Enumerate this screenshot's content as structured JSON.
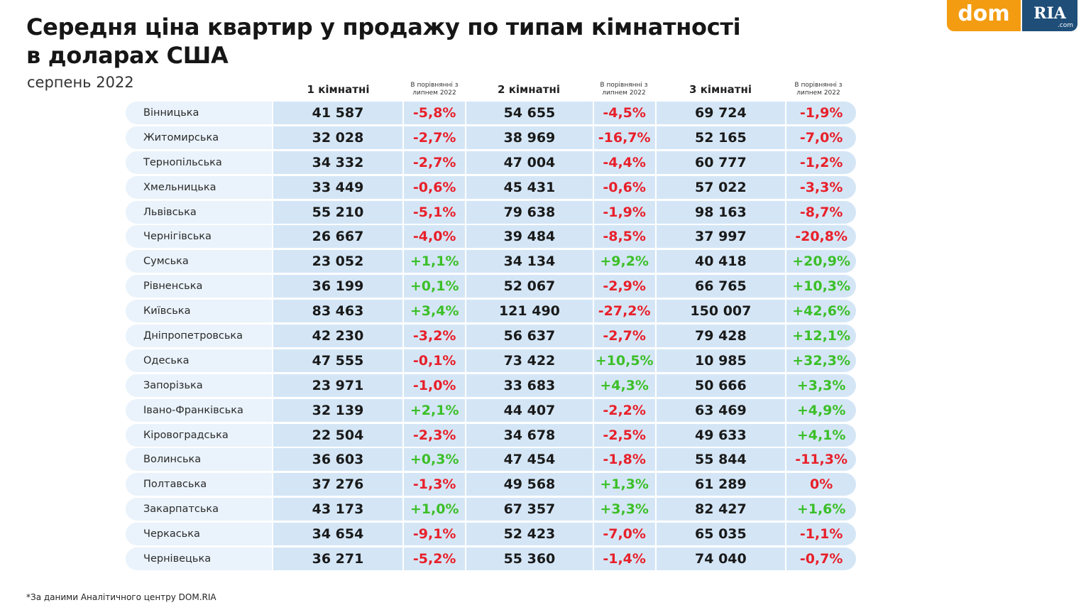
{
  "title_line1": "Середня ціна квартир у продажу по типам кімнатності",
  "title_line2": "в доларах США",
  "subtitle": "серпень 2022",
  "logo": {
    "dom": "dom",
    "ria": "RIA",
    "com": ".com"
  },
  "footnote": "*За даними Аналітичного центру DOM.RIA",
  "colors": {
    "negative": "#e8202a",
    "positive": "#3cbf28",
    "cell": "#d4e6f6",
    "region_cell": "#eaf3fb",
    "logo_orange": "#f39c12",
    "logo_blue": "#1f4e79"
  },
  "chart_data": {
    "type": "table",
    "columns": [
      "1 кімнатні",
      "В порівнянні з липнем 2022",
      "2 кімнатні",
      "В порівнянні з липнем 2022",
      "3 кімнатні",
      "В порівнянні з липнем 2022"
    ],
    "rows": [
      [
        "Вінницька",
        "41 587",
        "-5,8%",
        "54 655",
        "-4,5%",
        "69 724",
        "-1,9%"
      ],
      [
        "Житомирська",
        "32 028",
        "-2,7%",
        "38 969",
        "-16,7%",
        "52 165",
        "-7,0%"
      ],
      [
        "Тернопільська",
        "34 332",
        "-2,7%",
        "47 004",
        "-4,4%",
        "60 777",
        "-1,2%"
      ],
      [
        "Хмельницька",
        "33 449",
        "-0,6%",
        "45 431",
        "-0,6%",
        "57 022",
        "-3,3%"
      ],
      [
        "Львівська",
        "55 210",
        "-5,1%",
        "79 638",
        "-1,9%",
        "98 163",
        "-8,7%"
      ],
      [
        "Чернігівська",
        "26 667",
        "-4,0%",
        "39 484",
        "-8,5%",
        "37 997",
        "-20,8%"
      ],
      [
        "Сумська",
        "23 052",
        "+1,1%",
        "34 134",
        "+9,2%",
        "40 418",
        "+20,9%"
      ],
      [
        "Рівненська",
        "36 199",
        "+0,1%",
        "52 067",
        "-2,9%",
        "66 765",
        "+10,3%"
      ],
      [
        "Київська",
        "83 463",
        "+3,4%",
        "121 490",
        "-27,2%",
        "150 007",
        "+42,6%"
      ],
      [
        "Дніпропетровська",
        "42 230",
        "-3,2%",
        "56 637",
        "-2,7%",
        "79 428",
        "+12,1%"
      ],
      [
        "Одеська",
        "47 555",
        "-0,1%",
        "73 422",
        "+10,5%",
        "10 985",
        "+32,3%"
      ],
      [
        "Запорізька",
        "23 971",
        "-1,0%",
        "33 683",
        "+4,3%",
        "50 666",
        "+3,3%"
      ],
      [
        "Івано-Франківська",
        "32 139",
        "+2,1%",
        "44 407",
        "-2,2%",
        "63 469",
        "+4,9%"
      ],
      [
        "Кіровоградська",
        "22 504",
        "-2,3%",
        "34 678",
        "-2,5%",
        "49 633",
        "+4,1%"
      ],
      [
        "Волинська",
        "36 603",
        "+0,3%",
        "47 454",
        "-1,8%",
        "55 844",
        "-11,3%"
      ],
      [
        "Полтавська",
        "37 276",
        "-1,3%",
        "49 568",
        "+1,3%",
        "61 289",
        "0%"
      ],
      [
        "Закарпатська",
        "43 173",
        "+1,0%",
        "67 357",
        "+3,3%",
        "82 427",
        "+1,6%"
      ],
      [
        "Черкаська",
        "34 654",
        "-9,1%",
        "52 423",
        "-7,0%",
        "65 035",
        "-1,1%"
      ],
      [
        "Чернівецька",
        "36 271",
        "-5,2%",
        "55 360",
        "-1,4%",
        "74 040",
        "-0,7%"
      ]
    ]
  }
}
